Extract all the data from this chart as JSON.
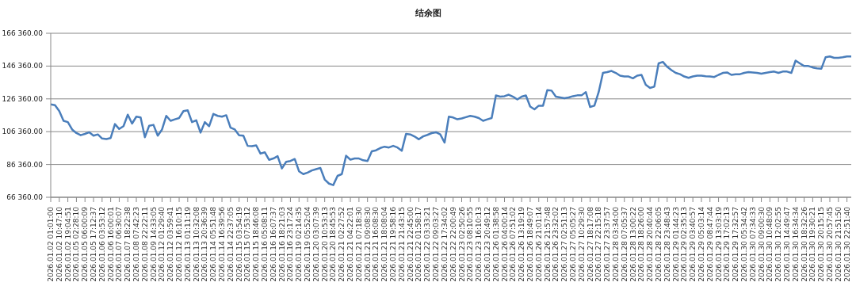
{
  "chart_data": {
    "type": "line",
    "title": "结余图",
    "categories": [
      "2026.01.02 01:01:00",
      null,
      "2026.01.02 10:47:10",
      null,
      "2026.01.02 19:04:51",
      null,
      "2026.01.05 02:28:10",
      null,
      "2026.01.05 06:00:09",
      null,
      "2026.01.05 17:12:37",
      null,
      "2026.01.06 03:53:12",
      null,
      "2026.01.06 16:00:01",
      null,
      "2026.01.07 06:30:07",
      null,
      "2026.01.07 18:22:38",
      null,
      "2026.01.08 07:42:23",
      null,
      "2026.01.08 22:22:11",
      null,
      "2026.01.09 14:33:05",
      null,
      "2026.01.12 01:29:40",
      null,
      "2026.01.12 03:59:41",
      null,
      "2026.01.12 16:10:15",
      null,
      "2026.01.13 01:11:19",
      null,
      "2026.01.13 10:32:08",
      null,
      "2026.01.13 20:36:39",
      null,
      "2026.01.14 05:51:48",
      null,
      "2026.01.14 16:39:56",
      null,
      "2026.01.14 22:37:05",
      null,
      "2026.01.15 03:54:19",
      null,
      "2026.01.15 07:53:12",
      null,
      "2026.01.15 18:46:08",
      null,
      "2026.01.16 05:08:11",
      null,
      "2026.01.16 16:07:37",
      null,
      "2026.01.16 18:21:03",
      null,
      "2026.01.16 23:17:24",
      null,
      "2026.01.19 02:14:35",
      null,
      "2026.01.19 05:52:04",
      null,
      "2026.01.20 03:07:39",
      null,
      "2026.01.20 10:53:13",
      null,
      "2026.01.20 18:45:53",
      null,
      "2026.01.21 02:27:52",
      null,
      "2026.01.21 04:22:01",
      null,
      "2026.01.21 07:18:30",
      null,
      "2026.01.21 09:08:30",
      null,
      "2026.01.21 16:08:30",
      null,
      "2026.01.21 18:08:04",
      null,
      "2026.01.21 19:58:16",
      null,
      "2026.01.21 21:43:15",
      null,
      "2026.01.21 22:45:00",
      null,
      "2026.01.22 01:58:17",
      null,
      "2026.01.22 03:33:21",
      null,
      "2026.01.22 09:03:27",
      null,
      "2026.01.22 17:34:02",
      null,
      "2026.01.22 22:00:49",
      null,
      "2026.01.23 02:50:26",
      null,
      "2026.01.23 08:10:55",
      null,
      "2026.01.23 16:10:13",
      null,
      "2026.01.23 20:49:12",
      null,
      "2026.01.26 01:38:58",
      null,
      "2026.01.26 04:00:14",
      null,
      "2026.01.26 07:51:02",
      null,
      "2026.01.26 13:19:19",
      null,
      "2026.01.26 18:49:07",
      null,
      "2026.01.26 21:01:14",
      null,
      "2026.01.26 21:57:48",
      null,
      "2026.01.26 23:32:02",
      null,
      "2026.01.27 02:51:13",
      null,
      "2026.01.27 05:05:27",
      null,
      "2026.01.27 10:29:30",
      null,
      "2026.01.27 18:17:08",
      null,
      "2026.01.27 22:15:18",
      null,
      "2026.01.27 23:37:57",
      null,
      "2026.01.28 03:34:00",
      null,
      "2026.01.28 07:05:37",
      null,
      "2026.01.28 13:00:22",
      null,
      "2026.01.28 18:26:00",
      null,
      "2026.01.28 20:40:44",
      null,
      "2026.01.28 22:06:05",
      null,
      "2026.01.28 23:48:43",
      null,
      "2026.01.29 01:44:23",
      null,
      "2026.01.29 02:35:13",
      null,
      "2026.01.29 03:40:57",
      null,
      "2026.01.29 05:03:14",
      null,
      "2026.01.29 08:47:44",
      null,
      "2026.01.29 13:03:19",
      null,
      "2026.01.29 17:02:13",
      null,
      "2026.01.29 17:32:57",
      null,
      "2026.01.30 05:34:42",
      null,
      "2026.01.30 07:34:33",
      null,
      "2026.01.30 09:00:30",
      null,
      "2026.01.30 10:48:09",
      null,
      "2026.01.30 12:02:55",
      null,
      "2026.01.30 14:49:47",
      null,
      "2026.01.30 16:34:34",
      null,
      "2026.01.30 18:32:26",
      null,
      "2026.01.30 19:30:21",
      null,
      "2026.01.30 20:15:15",
      null,
      "2026.01.30 20:57:45",
      null,
      "2026.01.30 21:51:50",
      null,
      "2026.01.30 22:51:40",
      null
    ],
    "values": [
      123000,
      122500,
      118900,
      113000,
      112200,
      107700,
      105500,
      104200,
      105000,
      106000,
      103900,
      104700,
      102200,
      101900,
      102500,
      111000,
      108000,
      109700,
      116700,
      111300,
      115500,
      115000,
      103000,
      110000,
      110500,
      103900,
      107700,
      116000,
      113000,
      113900,
      114700,
      118900,
      119400,
      112200,
      113300,
      105800,
      112200,
      109700,
      117200,
      116000,
      115500,
      116400,
      108800,
      107700,
      104200,
      103900,
      97700,
      97500,
      98000,
      93000,
      93800,
      89200,
      90000,
      91400,
      83900,
      88000,
      88500,
      89700,
      82200,
      80500,
      81400,
      82700,
      83500,
      84200,
      77200,
      74700,
      73800,
      79400,
      80500,
      91700,
      89300,
      90000,
      90000,
      88900,
      88500,
      94400,
      95000,
      96400,
      97200,
      96700,
      97700,
      96700,
      94700,
      105000,
      104700,
      103400,
      101700,
      103500,
      104400,
      105500,
      106000,
      104700,
      99700,
      115500,
      115000,
      113900,
      114400,
      115200,
      116000,
      115500,
      114700,
      113000,
      113900,
      114700,
      128400,
      127700,
      128000,
      128900,
      127700,
      126000,
      127700,
      128400,
      121700,
      120000,
      122200,
      122200,
      131700,
      131400,
      127700,
      127200,
      126700,
      127200,
      128000,
      128500,
      128500,
      130500,
      121400,
      122200,
      130500,
      142200,
      142700,
      143400,
      142200,
      140500,
      140000,
      140000,
      138900,
      140500,
      141000,
      135000,
      133000,
      133800,
      148000,
      148900,
      145900,
      143900,
      142200,
      141400,
      140000,
      139200,
      140000,
      140500,
      140500,
      140200,
      140000,
      139700,
      141000,
      142200,
      142500,
      141000,
      141400,
      141400,
      142200,
      142700,
      142500,
      142200,
      141700,
      142200,
      142700,
      143000,
      142200,
      143000,
      143000,
      142200,
      149700,
      148000,
      146400,
      146400,
      145500,
      145000,
      144700,
      151700,
      152200,
      151400,
      151400,
      151700,
      152200,
      152200
    ],
    "color": "#4a7ebb",
    "ylim": [
      66360,
      166360
    ],
    "yticks": [
      {
        "value": 66360,
        "label": "66 360.00"
      },
      {
        "value": 86360,
        "label": "86 360.00"
      },
      {
        "value": 106360,
        "label": "106 360.00"
      },
      {
        "value": 126360,
        "label": "126 360.00"
      },
      {
        "value": 146360,
        "label": "146 360.00"
      },
      {
        "value": 166360,
        "label": "166 360.00"
      }
    ],
    "grid": "y",
    "marker": "none",
    "line_style": "solid"
  }
}
